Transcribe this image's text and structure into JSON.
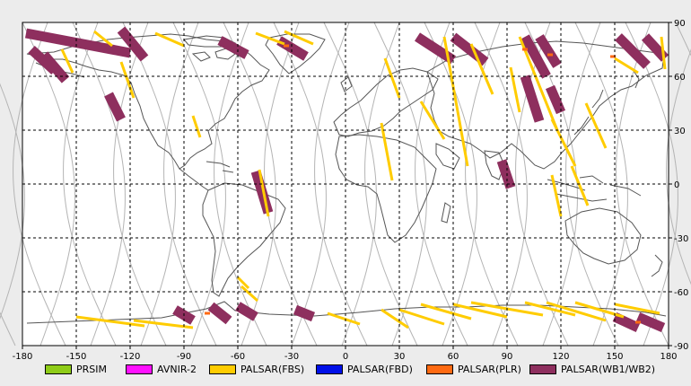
{
  "map": {
    "lon_range": [
      -180,
      180
    ],
    "lat_range": [
      -90,
      90
    ],
    "grid_lon_step": 30,
    "grid_lat_step": 30,
    "bottom_ticks": [
      "-180",
      "-150",
      "-120",
      "-90",
      "-60",
      "-30",
      "0",
      "30",
      "60",
      "90",
      "120",
      "150",
      "180"
    ],
    "right_ticks": [
      "90",
      "60",
      "30",
      "0",
      "-30",
      "-60",
      "-90"
    ]
  },
  "legend": [
    {
      "label": "PRSIM",
      "color": "#8fcc18"
    },
    {
      "label": "AVNIR-2",
      "color": "#ff10ff"
    },
    {
      "label": "PALSAR(FBS)",
      "color": "#ffcc00"
    },
    {
      "label": "PALSAR(FBD)",
      "color": "#0010e8"
    },
    {
      "label": "PALSAR(PLR)",
      "color": "#ff6a12"
    },
    {
      "label": "PALSAR(WB1/WB2)",
      "color": "#8e2f5e"
    }
  ],
  "colors": {
    "fbs": "#ffcc00",
    "wb": "#8e2f5e",
    "plr": "#ff6a12",
    "orbit": "#b4b4b4",
    "coast": "#555555",
    "grid": "#000000",
    "plot_bg": "#ffffff",
    "page_bg": "#ececec"
  },
  "wb_swaths": [
    {
      "lon": [
        -178,
        -120
      ],
      "lat": [
        84,
        73
      ]
    },
    {
      "lon": [
        -175,
        -162
      ],
      "lat": [
        75,
        63
      ]
    },
    {
      "lon": [
        -168,
        -156
      ],
      "lat": [
        72,
        58
      ]
    },
    {
      "lon": [
        -125,
        -112
      ],
      "lat": [
        86,
        70
      ]
    },
    {
      "lon": [
        -37,
        -22
      ],
      "lat": [
        80,
        71
      ]
    },
    {
      "lon": [
        -132,
        -125
      ],
      "lat": [
        50,
        36
      ]
    },
    {
      "lon": [
        -50,
        -43
      ],
      "lat": [
        7,
        -16
      ]
    },
    {
      "lon": [
        -70,
        -55
      ],
      "lat": [
        80,
        72
      ]
    },
    {
      "lon": [
        40,
        60
      ],
      "lat": [
        82,
        69
      ]
    },
    {
      "lon": [
        60,
        78
      ],
      "lat": [
        82,
        68
      ]
    },
    {
      "lon": [
        100,
        112
      ],
      "lat": [
        82,
        60
      ]
    },
    {
      "lon": [
        100,
        108
      ],
      "lat": [
        60,
        35
      ]
    },
    {
      "lon": [
        108,
        118
      ],
      "lat": [
        82,
        66
      ]
    },
    {
      "lon": [
        152,
        168
      ],
      "lat": [
        82,
        66
      ]
    },
    {
      "lon": [
        167,
        178
      ],
      "lat": [
        82,
        70
      ]
    },
    {
      "lon": [
        114,
        120
      ],
      "lat": [
        54,
        40
      ]
    },
    {
      "lon": [
        87,
        92
      ],
      "lat": [
        13,
        -2
      ]
    },
    {
      "lon": [
        -95,
        -85
      ],
      "lat": [
        -70,
        -76
      ]
    },
    {
      "lon": [
        -75,
        -65
      ],
      "lat": [
        -68,
        -76
      ]
    },
    {
      "lon": [
        -60,
        -50
      ],
      "lat": [
        -68,
        -74
      ]
    },
    {
      "lon": [
        -28,
        -18
      ],
      "lat": [
        -70,
        -74
      ]
    },
    {
      "lon": [
        150,
        163
      ],
      "lat": [
        -74,
        -80
      ]
    },
    {
      "lon": [
        163,
        177
      ],
      "lat": [
        -74,
        -80
      ]
    }
  ],
  "fbs_tracks": [
    {
      "lon": [
        -140,
        -130
      ],
      "lat": [
        85,
        77
      ]
    },
    {
      "lon": [
        -106,
        -90
      ],
      "lat": [
        84,
        77
      ]
    },
    {
      "lon": [
        -34,
        -18
      ],
      "lat": [
        85,
        78
      ]
    },
    {
      "lon": [
        -50,
        -34
      ],
      "lat": [
        84,
        78
      ]
    },
    {
      "lon": [
        -158,
        -152
      ],
      "lat": [
        75,
        62
      ]
    },
    {
      "lon": [
        -125,
        -118
      ],
      "lat": [
        68,
        48
      ]
    },
    {
      "lon": [
        -85,
        -81
      ],
      "lat": [
        38,
        26
      ]
    },
    {
      "lon": [
        -48,
        -43
      ],
      "lat": [
        8,
        -18
      ]
    },
    {
      "lon": [
        -60,
        -54
      ],
      "lat": [
        -52,
        -58
      ]
    },
    {
      "lon": [
        -58,
        -49
      ],
      "lat": [
        -57,
        -65
      ]
    },
    {
      "lon": [
        20,
        26
      ],
      "lat": [
        34,
        2
      ]
    },
    {
      "lon": [
        22,
        30
      ],
      "lat": [
        70,
        48
      ]
    },
    {
      "lon": [
        42,
        55
      ],
      "lat": [
        46,
        25
      ]
    },
    {
      "lon": [
        55,
        68
      ],
      "lat": [
        82,
        10
      ]
    },
    {
      "lon": [
        70,
        82
      ],
      "lat": [
        78,
        50
      ]
    },
    {
      "lon": [
        92,
        97
      ],
      "lat": [
        65,
        40
      ]
    },
    {
      "lon": [
        97,
        118
      ],
      "lat": [
        82,
        30
      ]
    },
    {
      "lon": [
        115,
        128
      ],
      "lat": [
        36,
        10
      ]
    },
    {
      "lon": [
        115,
        120
      ],
      "lat": [
        5,
        -18
      ]
    },
    {
      "lon": [
        126,
        135
      ],
      "lat": [
        10,
        -12
      ]
    },
    {
      "lon": [
        134,
        145
      ],
      "lat": [
        45,
        20
      ]
    },
    {
      "lon": [
        150,
        163
      ],
      "lat": [
        70,
        62
      ]
    },
    {
      "lon": [
        176,
        178
      ],
      "lat": [
        82,
        64
      ]
    },
    {
      "lon": [
        -150,
        -112
      ],
      "lat": [
        -74,
        -79
      ]
    },
    {
      "lon": [
        -118,
        -85
      ],
      "lat": [
        -76,
        -80
      ]
    },
    {
      "lon": [
        -10,
        8
      ],
      "lat": [
        -72,
        -78
      ]
    },
    {
      "lon": [
        20,
        35
      ],
      "lat": [
        -70,
        -80
      ]
    },
    {
      "lon": [
        30,
        55
      ],
      "lat": [
        -70,
        -78
      ]
    },
    {
      "lon": [
        42,
        70
      ],
      "lat": [
        -67,
        -75
      ]
    },
    {
      "lon": [
        60,
        90
      ],
      "lat": [
        -67,
        -74
      ]
    },
    {
      "lon": [
        70,
        110
      ],
      "lat": [
        -66,
        -73
      ]
    },
    {
      "lon": [
        100,
        128
      ],
      "lat": [
        -66,
        -73
      ]
    },
    {
      "lon": [
        112,
        145
      ],
      "lat": [
        -66,
        -76
      ]
    },
    {
      "lon": [
        128,
        155
      ],
      "lat": [
        -66,
        -74
      ]
    },
    {
      "lon": [
        150,
        175
      ],
      "lat": [
        -67,
        -72
      ]
    }
  ],
  "plr_spots": [
    {
      "lon": -33,
      "lat": 77
    },
    {
      "lon": 100,
      "lat": 75
    },
    {
      "lon": 114,
      "lat": 72
    },
    {
      "lon": 149,
      "lat": 71
    },
    {
      "lon": 163,
      "lat": -77
    },
    {
      "lon": -77,
      "lat": -72
    }
  ]
}
